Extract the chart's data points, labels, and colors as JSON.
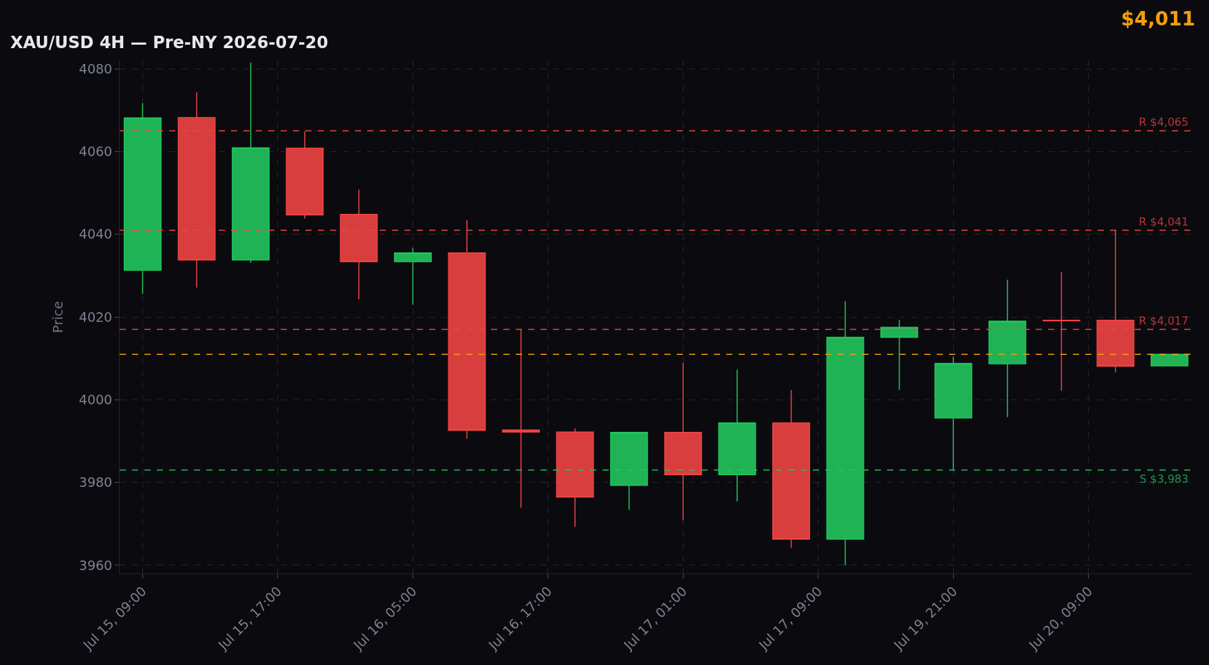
{
  "chart_data": {
    "type": "candlestick",
    "title": "XAU/USD 4H — Pre-NY 2026-07-20",
    "ylabel": "Price",
    "annotations": [
      "$4,011"
    ],
    "categories": [
      "Jul 15, 09:00",
      null,
      null,
      null,
      null,
      "Jul 15, 17:00",
      null,
      null,
      null,
      null,
      "Jul 16, 05:00",
      null,
      null,
      null,
      null,
      "Jul 16, 17:00",
      null,
      null,
      null,
      null,
      "Jul 17, 01:00",
      null,
      null,
      null,
      null,
      "Jul 17, 09:00",
      null,
      null,
      null,
      null,
      "Jul 19, 21:00",
      null,
      null,
      null,
      null,
      "Jul 20, 09:00",
      null,
      null,
      null
    ],
    "ohlc": [
      [
        4031.3,
        4071.7,
        4025.6,
        4068.1
      ],
      null,
      [
        4068.2,
        4074.3,
        4027.1,
        4033.8
      ],
      null,
      [
        4033.8,
        4081.5,
        4033.1,
        4060.9
      ],
      null,
      [
        4060.8,
        4064.9,
        4043.8,
        4044.7
      ],
      null,
      [
        4044.8,
        4050.8,
        4024.3,
        4033.4
      ],
      null,
      [
        4033.4,
        4036.7,
        4023,
        4035.5
      ],
      null,
      [
        4035.5,
        4043.4,
        3990.6,
        3992.6
      ],
      null,
      [
        3992.7,
        4017.1,
        3973.9,
        3992.2
      ],
      null,
      [
        3992.2,
        3993.1,
        3969.3,
        3976.5
      ],
      null,
      [
        3979.3,
        3992.1,
        3973.4,
        3992.1
      ],
      null,
      [
        3992.1,
        4008.9,
        3970.9,
        3981.9
      ],
      null,
      [
        3981.9,
        4007.3,
        3975.4,
        3994.4
      ],
      null,
      [
        3994.4,
        4002.4,
        3964.2,
        3966.3
      ],
      null,
      [
        3966.3,
        4023.8,
        3960,
        4015.1
      ],
      null,
      [
        4015.1,
        4019.3,
        4002.4,
        4017.5
      ],
      null,
      [
        3995.6,
        4010.4,
        3982.9,
        4008.8
      ],
      null,
      [
        4008.7,
        4029.0,
        3995.8,
        4019.0
      ],
      null,
      [
        4019.2,
        4030.9,
        4002.2,
        4019.1
      ],
      null,
      [
        4019.2,
        4041.0,
        4006.6,
        4008.1
      ],
      null,
      [
        4008.2,
        4011.0,
        4008.1,
        4011.0
      ]
    ],
    "colors": [
      "#22c55e",
      null,
      "#ef4444",
      null,
      "#22c55e",
      null,
      "#ef4444",
      null,
      "#ef4444",
      null,
      "#22c55e",
      null,
      "#ef4444",
      null,
      "#ef4444",
      null,
      "#ef4444",
      null,
      "#22c55e",
      null,
      "#ef4444",
      null,
      "#22c55e",
      null,
      "#ef4444",
      null,
      "#22c55e",
      null,
      "#22c55e",
      null,
      "#22c55e",
      null,
      "#22c55e",
      null,
      "#ef4444",
      null,
      "#ef4444",
      null,
      "#22c55e"
    ],
    "ylim": [
      3958,
      4082
    ],
    "yticks": [
      3960,
      3980,
      4000,
      4020,
      4040,
      4060,
      4080
    ],
    "ref_lines": [
      {
        "axis": "y",
        "value": 4065,
        "label": "R $4,065",
        "color": "#ef4444",
        "line_style": "dashed"
      },
      {
        "axis": "y",
        "value": 4041,
        "label": "R $4,041",
        "color": "#ef4444",
        "line_style": "dashed"
      },
      {
        "axis": "y",
        "value": 4017,
        "label": "R $4,017",
        "color": "#ef4444",
        "line_style": "dashed"
      },
      {
        "axis": "y",
        "value": 4011,
        "color": "#f59e0b",
        "line_style": "dashed"
      },
      {
        "axis": "y",
        "value": 3983,
        "label": "S $3,983",
        "color": "#22c55e",
        "line_style": "dashed"
      }
    ],
    "grid": true
  }
}
